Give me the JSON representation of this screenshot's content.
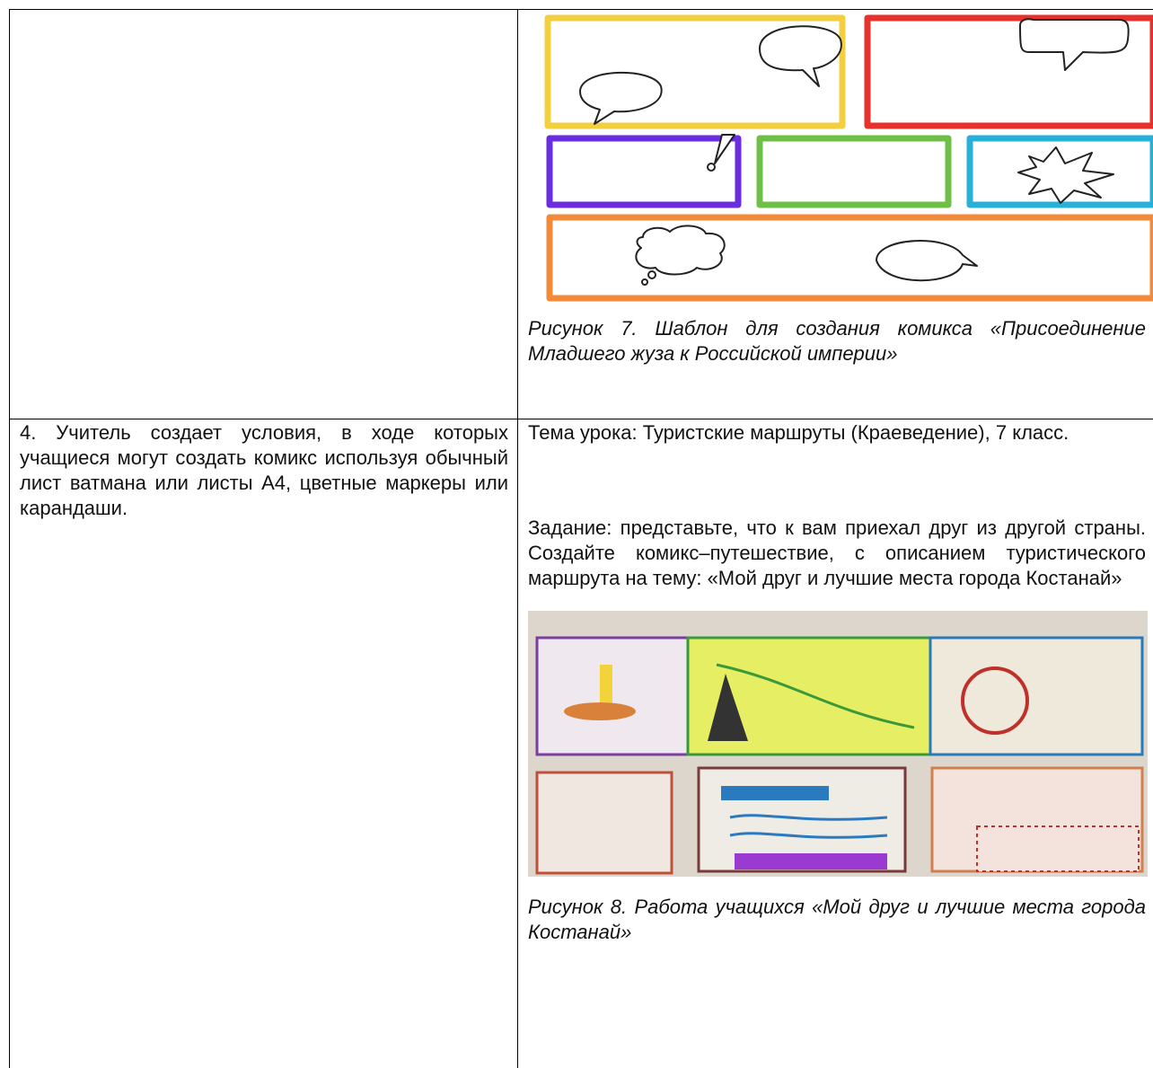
{
  "table": {
    "rows": [
      {
        "right": {
          "figure_caption": "Рисунок 7. Шаблон для создания комикса «Присоединение Младшего жуза к Российской империи»"
        }
      },
      {
        "left": "4. Учитель создает условия, в ходе которых учащиеся могут создать комикс используя обычный лист ватмана или листы А4, цветные маркеры или карандаши.",
        "right": {
          "paragraphs": [
            "Тема урока: Туристские маршруты (Краеведение), 7 класс.",
            "Задание: представьте, что к вам приехал друг из другой страны. Создайте комикс–путешествие, с описанием туристического маршрута на тему: «Мой друг и лучшие места города Костанай»"
          ],
          "figure_caption": "Рисунок 8. Работа учащихся «Мой друг и лучшие места города Костанай»"
        }
      }
    ]
  }
}
